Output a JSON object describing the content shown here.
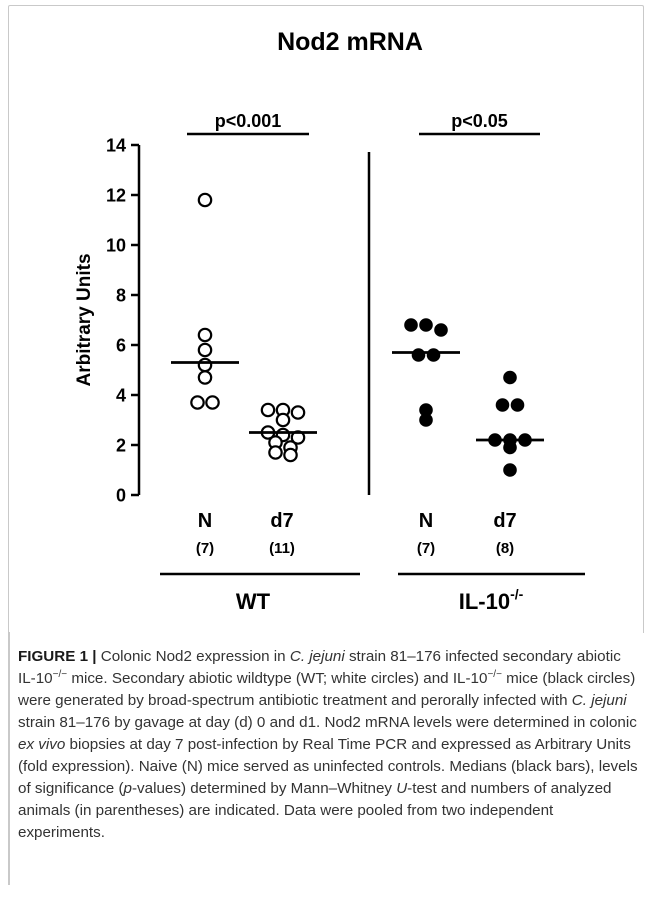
{
  "chart_data": {
    "type": "scatter",
    "title": "Nod2 mRNA",
    "ylabel": "Arbitrary Units",
    "ylim": [
      0,
      14
    ],
    "yticks": [
      0,
      2,
      4,
      6,
      8,
      10,
      12,
      14
    ],
    "grid": false,
    "groups": [
      {
        "label": "N",
        "count": "(7)",
        "genotype": "WT",
        "marker": "open",
        "values": [
          11.8,
          6.4,
          5.8,
          5.2,
          4.7,
          3.7,
          3.7
        ],
        "median": 5.3
      },
      {
        "label": "d7",
        "count": "(11)",
        "genotype": "WT",
        "marker": "open",
        "values": [
          3.4,
          3.4,
          3.3,
          3.0,
          2.5,
          2.4,
          2.3,
          2.1,
          1.9,
          1.7,
          1.6
        ],
        "median": 2.5
      },
      {
        "label": "N",
        "count": "(7)",
        "genotype": "IL-10-/-",
        "marker": "filled",
        "values": [
          6.8,
          6.8,
          6.6,
          5.6,
          5.6,
          3.4,
          3.0
        ],
        "median": 5.7
      },
      {
        "label": "d7",
        "count": "(8)",
        "genotype": "IL-10-/-",
        "marker": "filled",
        "values": [
          4.7,
          3.6,
          3.6,
          2.2,
          2.2,
          2.2,
          1.9,
          1.0
        ],
        "median": 2.2
      }
    ],
    "significance": [
      {
        "text": "p<0.001",
        "between": [
          "WT N",
          "WT d7"
        ]
      },
      {
        "text": "p<0.05",
        "between": [
          "IL-10 N",
          "IL-10 d7"
        ]
      }
    ],
    "genotype_labels": {
      "wt": "WT",
      "il10_base": "IL-10",
      "il10_sup": "-/-"
    }
  },
  "caption": {
    "lead": "FIGURE 1",
    "sep": " | ",
    "t1": "Colonic Nod2 expression in ",
    "t2": "C. jejuni",
    "t3": " strain 81–176 infected secondary abiotic IL-10",
    "t4": "−/−",
    "t5": " mice.  Secondary abiotic wildtype (WT; white circles) and IL-10",
    "t6": "−/−",
    "t7": " mice (black circles) were generated by broad-spectrum antibiotic treatment and perorally infected with ",
    "t8": "C. jejuni",
    "t9": " strain 81–176 by gavage at day (d) 0 and d1. Nod2 mRNA levels were determined in colonic ",
    "t10": "ex vivo",
    "t11": " biopsies at day 7 post-infection by Real Time PCR and expressed as Arbitrary Units (fold expression). Naive (N) mice served as uninfected controls. Medians (black bars), levels of significance (",
    "t12": "p",
    "t13": "-values) determined by Mann–Whitney ",
    "t14": "U",
    "t15": "-test and numbers of analyzed animals (in parentheses) are indicated. Data were pooled from two independent experiments."
  }
}
